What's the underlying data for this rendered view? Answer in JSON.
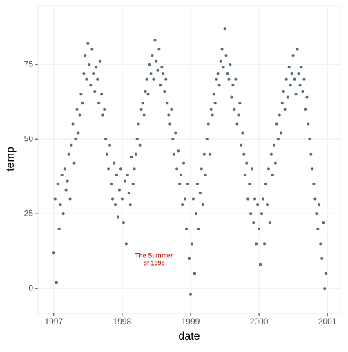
{
  "chart_data": {
    "type": "scatter",
    "x_label": "date",
    "y_label": "temp",
    "annotation": [
      "The Summer",
      "of 1998"
    ],
    "color": "#56697a",
    "annotation_color": "#c0281b",
    "grid": true,
    "xlim": [
      1996.77,
      2001.19
    ],
    "ylim": [
      -8.3,
      94.7
    ],
    "xticks": [
      1997,
      1998,
      1999,
      2000,
      2001
    ],
    "yticks": [
      0,
      25,
      50,
      75
    ],
    "x": [
      1997.0,
      1997.02,
      1997.04,
      1997.06,
      1997.08,
      1997.1,
      1997.12,
      1997.14,
      1997.16,
      1997.18,
      1997.2,
      1997.22,
      1997.24,
      1997.26,
      1997.28,
      1997.3,
      1997.32,
      1997.34,
      1997.36,
      1997.38,
      1997.4,
      1997.42,
      1997.44,
      1997.46,
      1997.48,
      1997.5,
      1997.52,
      1997.54,
      1997.56,
      1997.58,
      1997.6,
      1997.62,
      1997.64,
      1997.66,
      1997.68,
      1997.7,
      1997.72,
      1997.74,
      1997.76,
      1997.78,
      1997.8,
      1997.82,
      1997.84,
      1997.86,
      1997.88,
      1997.9,
      1997.92,
      1997.94,
      1997.96,
      1997.98,
      1998.0,
      1998.02,
      1998.04,
      1998.06,
      1998.08,
      1998.1,
      1998.12,
      1998.14,
      1998.16,
      1998.18,
      1998.2,
      1998.22,
      1998.24,
      1998.26,
      1998.28,
      1998.3,
      1998.32,
      1998.34,
      1998.36,
      1998.38,
      1998.4,
      1998.42,
      1998.44,
      1998.46,
      1998.48,
      1998.5,
      1998.52,
      1998.54,
      1998.56,
      1998.58,
      1998.6,
      1998.62,
      1998.64,
      1998.66,
      1998.68,
      1998.7,
      1998.72,
      1998.74,
      1998.76,
      1998.78,
      1998.8,
      1998.82,
      1998.84,
      1998.86,
      1998.88,
      1998.9,
      1998.92,
      1998.94,
      1998.96,
      1998.98,
      1999.0,
      1999.02,
      1999.04,
      1999.06,
      1999.08,
      1999.1,
      1999.12,
      1999.14,
      1999.16,
      1999.18,
      1999.2,
      1999.22,
      1999.24,
      1999.26,
      1999.28,
      1999.3,
      1999.32,
      1999.34,
      1999.36,
      1999.38,
      1999.4,
      1999.42,
      1999.44,
      1999.46,
      1999.48,
      1999.5,
      1999.52,
      1999.54,
      1999.56,
      1999.58,
      1999.6,
      1999.62,
      1999.64,
      1999.66,
      1999.68,
      1999.7,
      1999.72,
      1999.74,
      1999.76,
      1999.78,
      1999.8,
      1999.82,
      1999.84,
      1999.86,
      1999.88,
      1999.9,
      1999.92,
      1999.94,
      1999.96,
      1999.98,
      2000.0,
      2000.02,
      2000.04,
      2000.06,
      2000.08,
      2000.1,
      2000.12,
      2000.14,
      2000.16,
      2000.18,
      2000.2,
      2000.22,
      2000.24,
      2000.26,
      2000.28,
      2000.3,
      2000.32,
      2000.34,
      2000.36,
      2000.38,
      2000.4,
      2000.42,
      2000.44,
      2000.46,
      2000.48,
      2000.5,
      2000.52,
      2000.54,
      2000.56,
      2000.58,
      2000.6,
      2000.62,
      2000.64,
      2000.66,
      2000.68,
      2000.7,
      2000.72,
      2000.74,
      2000.76,
      2000.78,
      2000.8,
      2000.82,
      2000.84,
      2000.86,
      2000.88,
      2000.9,
      2000.92,
      2000.94,
      2000.96,
      2000.98
    ],
    "values": [
      12,
      30,
      2,
      35,
      20,
      28,
      38,
      25,
      40,
      33,
      36,
      45,
      30,
      48,
      55,
      42,
      50,
      60,
      52,
      58,
      65,
      62,
      72,
      78,
      70,
      82,
      75,
      68,
      80,
      72,
      66,
      74,
      70,
      62,
      76,
      65,
      58,
      60,
      50,
      45,
      40,
      48,
      35,
      30,
      42,
      28,
      38,
      24,
      33,
      40,
      30,
      22,
      36,
      15,
      38,
      32,
      28,
      44,
      35,
      40,
      45,
      50,
      55,
      48,
      60,
      62,
      58,
      66,
      70,
      65,
      75,
      72,
      78,
      70,
      83,
      76,
      73,
      80,
      68,
      74,
      72,
      66,
      70,
      62,
      58,
      55,
      60,
      50,
      45,
      52,
      40,
      46,
      35,
      38,
      28,
      42,
      30,
      20,
      35,
      10,
      -2,
      15,
      30,
      5,
      25,
      35,
      20,
      32,
      40,
      28,
      45,
      38,
      50,
      55,
      45,
      60,
      58,
      65,
      62,
      70,
      72,
      68,
      76,
      80,
      74,
      87,
      78,
      72,
      70,
      75,
      64,
      68,
      60,
      70,
      55,
      58,
      62,
      48,
      52,
      45,
      38,
      42,
      30,
      35,
      25,
      40,
      22,
      30,
      15,
      28,
      20,
      8,
      25,
      30,
      15,
      35,
      28,
      40,
      22,
      45,
      38,
      48,
      42,
      55,
      50,
      58,
      52,
      62,
      66,
      60,
      70,
      64,
      74,
      68,
      72,
      78,
      70,
      65,
      80,
      72,
      68,
      74,
      66,
      70,
      60,
      64,
      55,
      50,
      45,
      40,
      35,
      30,
      25,
      20,
      28,
      15,
      10,
      22,
      0,
      5
    ]
  }
}
